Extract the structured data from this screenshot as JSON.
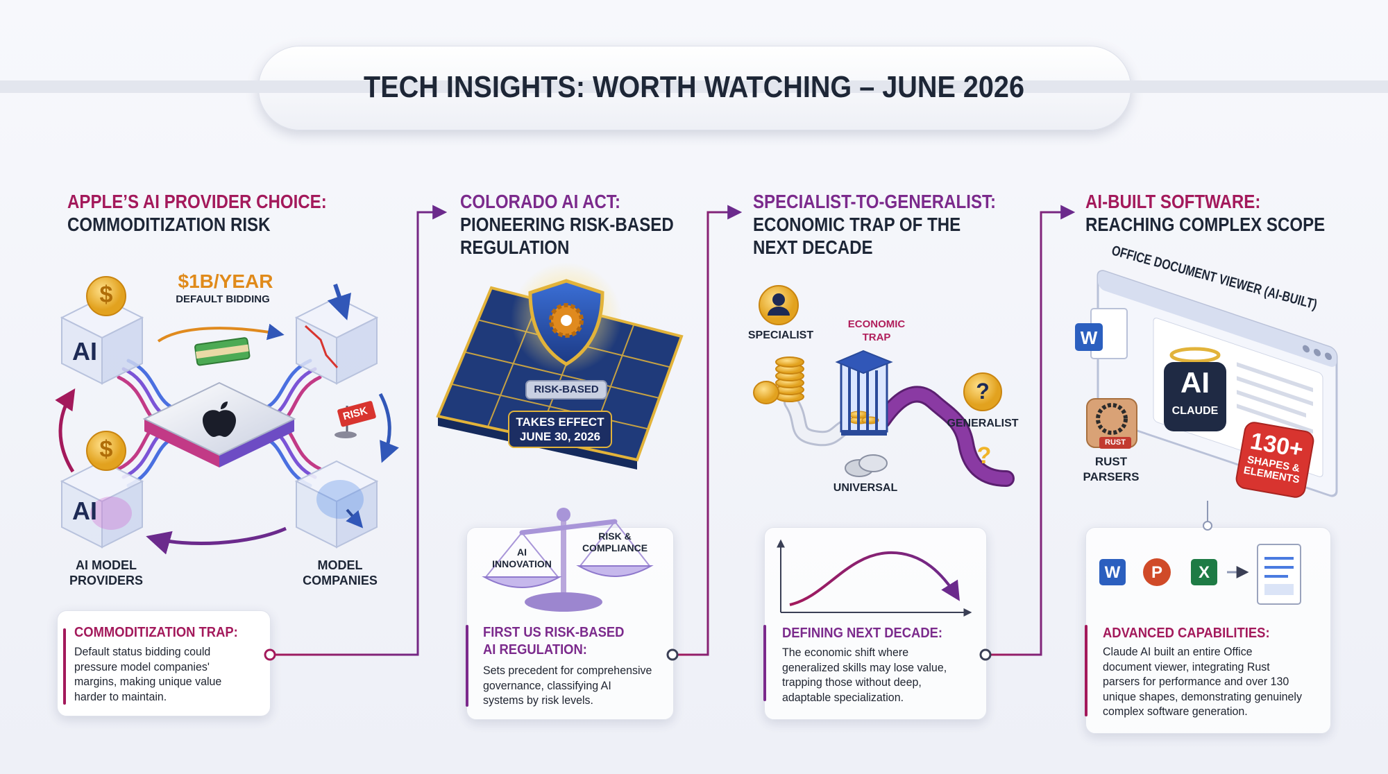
{
  "header": {
    "title": "TECH INSIGHTS: WORTH WATCHING – JUNE 2026"
  },
  "panels": [
    {
      "title": [
        "APPLE’S AI PROVIDER CHOICE:",
        "COMMODITIZATION RISK"
      ],
      "figure": {
        "price": "$1B/YEAR",
        "price_note": "DEFAULT BIDDING",
        "coins": [
          "$",
          "$"
        ],
        "cube_labels": [
          "AI",
          "AI"
        ],
        "risk_flag": "RISK",
        "providers": [
          "AI MODEL",
          "PROVIDERS"
        ],
        "companies": [
          "MODEL",
          "COMPANIES"
        ]
      },
      "card": {
        "title": [
          "COMMODITIZATION TRAP:"
        ],
        "body": [
          "Default status bidding could",
          "pressure model companies'",
          "margins, making unique value",
          "harder to maintain."
        ]
      }
    },
    {
      "title": [
        "COLORADO AI ACT:",
        "PIONEERING RISK-BASED",
        "REGULATION"
      ],
      "figure": {
        "shield_label": "RISK-BASED",
        "effect": [
          "TAKES EFFECT",
          "JUNE 30, 2026"
        ],
        "scale_left": [
          "AI",
          "INNOVATION"
        ],
        "scale_right": [
          "RISK &",
          "COMPLIANCE"
        ]
      },
      "card": {
        "title": [
          "FIRST US RISK-BASED",
          "AI REGULATION:"
        ],
        "body": [
          "Sets precedent for comprehensive",
          "governance, classifying AI",
          "systems by risk levels."
        ]
      }
    },
    {
      "title": [
        "SPECIALIST-TO-GENERALIST:",
        "ECONOMIC TRAP OF THE",
        "NEXT DECADE"
      ],
      "figure": {
        "specialist": "SPECIALIST",
        "trap": [
          "ECONOMIC",
          "TRAP"
        ],
        "generalist": "GENERALIST",
        "universal": "UNIVERSAL",
        "question_marks": [
          "?",
          "?"
        ]
      },
      "card": {
        "title": [
          "DEFINING NEXT DECADE:"
        ],
        "body": [
          "The economic shift where",
          "generalized skills may lose value,",
          "trapping those without deep,",
          "adaptable specialization."
        ]
      }
    },
    {
      "title": [
        "AI-BUILT SOFTWARE:",
        "REACHING COMPLEX SCOPE"
      ],
      "figure": {
        "window_title": "OFFICE DOCUMENT VIEWER (AI-BUILT)",
        "word_icon": "W",
        "claude_logo": "AI",
        "claude": "CLAUDE",
        "rust_badge": "RUST",
        "rust": [
          "RUST",
          "PARSERS"
        ],
        "shapes_count": "130+",
        "shapes": [
          "SHAPES &",
          "ELEMENTS"
        ],
        "office_icons": [
          "W",
          "P",
          "X"
        ]
      },
      "card": {
        "title": [
          "ADVANCED CAPABILITIES:"
        ],
        "body": [
          "Claude AI built an entire Office",
          "document viewer, integrating Rust",
          "parsers for performance and over 130",
          "unique shapes, demonstrating genuinely",
          "complex software generation."
        ]
      }
    }
  ]
}
